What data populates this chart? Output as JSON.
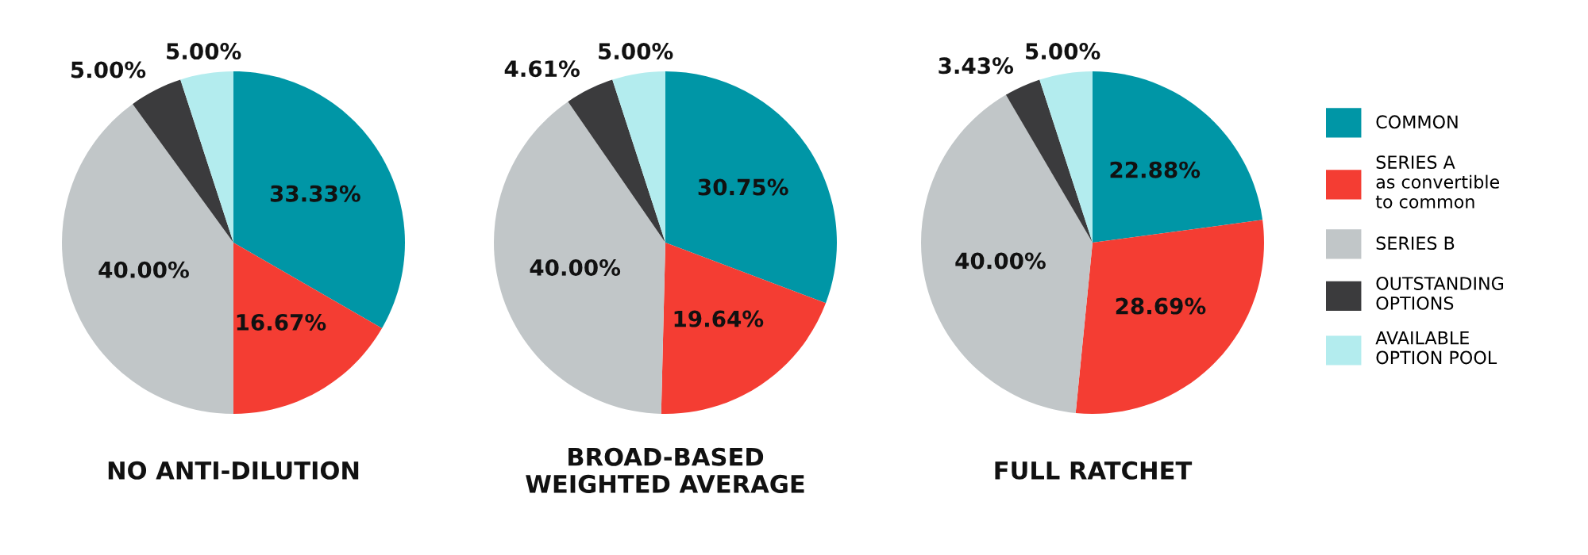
{
  "chart_data": [
    {
      "type": "pie",
      "title": "NO ANTI-DILUTION",
      "categories": [
        "COMMON",
        "SERIES A\nas convertible\nto common",
        "SERIES B",
        "OUTSTANDING\nOPTIONS",
        "AVAILABLE\nOPTION POOL"
      ],
      "values": [
        33.33,
        16.67,
        40.0,
        5.0,
        5.0
      ],
      "value_labels": [
        "33.33%",
        "16.67%",
        "40.00%",
        "5.00%",
        "5.00%"
      ],
      "colors": [
        "#0096a6",
        "#f43d33",
        "#c1c6c8",
        "#3b3b3d",
        "#b3ecee"
      ],
      "legend": "right"
    },
    {
      "type": "pie",
      "title": "BROAD-BASED\nWEIGHTED AVERAGE",
      "categories": [
        null,
        null,
        null,
        null,
        null
      ],
      "values": [
        30.75,
        19.64,
        40.0,
        4.61,
        5.0
      ],
      "value_labels": [
        "30.75%",
        "19.64%",
        "40.00%",
        "4.61%",
        "5.00%"
      ],
      "colors": [
        "#0096a6",
        "#f43d33",
        "#c1c6c8",
        "#3b3b3d",
        "#b3ecee"
      ]
    },
    {
      "type": "pie",
      "title": "FULL RATCHET",
      "categories": [
        null,
        null,
        null,
        null,
        null
      ],
      "values": [
        22.88,
        28.69,
        40.0,
        3.43,
        5.0
      ],
      "value_labels": [
        "22.88%",
        "28.69%",
        "40.00%",
        "3.43%",
        "5.00%"
      ],
      "colors": [
        "#0096a6",
        "#f43d33",
        "#c1c6c8",
        "#3b3b3d",
        "#b3ecee"
      ]
    }
  ]
}
